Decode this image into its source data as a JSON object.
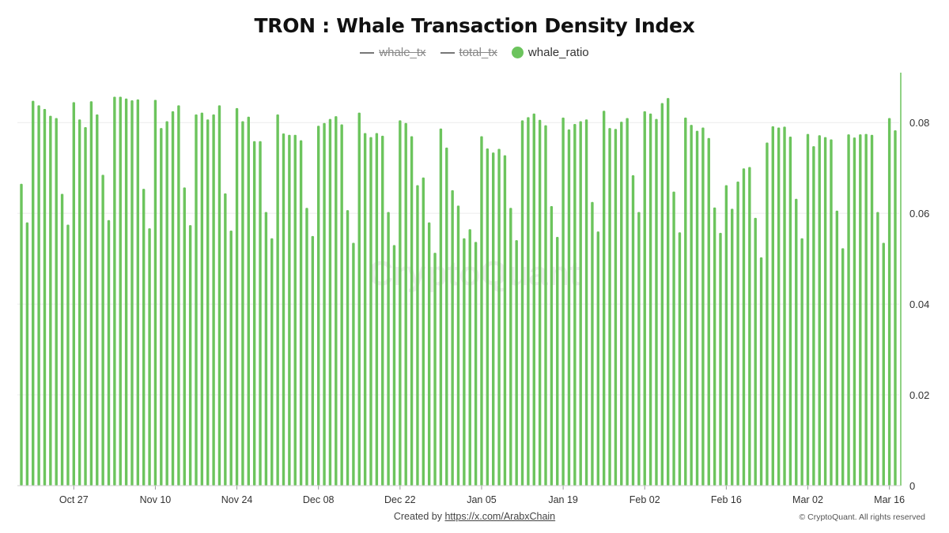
{
  "chart_data": {
    "type": "bar",
    "title": "TRON : Whale Transaction Density Index",
    "legend": [
      {
        "name": "whale_tx",
        "enabled": false,
        "color": "#777777"
      },
      {
        "name": "total_tx",
        "enabled": false,
        "color": "#777777"
      },
      {
        "name": "whale_ratio",
        "enabled": true,
        "color": "#6cc45d"
      }
    ],
    "legend_position": "top-center",
    "x_tick_labels": [
      "Oct 27",
      "Nov 10",
      "Nov 24",
      "Dec 08",
      "Dec 22",
      "Jan 05",
      "Jan 19",
      "Feb 02",
      "Feb 16",
      "Mar 02",
      "Mar 16"
    ],
    "y_tick_labels": [
      "0",
      "0.02",
      "0.04",
      "0.06",
      "0.08"
    ],
    "y_axis_position": "right",
    "ylim": [
      0,
      0.091
    ],
    "xlabel": "",
    "ylabel": "",
    "series": [
      {
        "name": "whale_ratio",
        "color": "#6cc45d",
        "start_date": "2024-10-18",
        "values": [
          0.0665,
          0.058,
          0.0848,
          0.0838,
          0.083,
          0.0815,
          0.081,
          0.0643,
          0.0575,
          0.0845,
          0.0807,
          0.079,
          0.0847,
          0.0818,
          0.0685,
          0.0585,
          0.0857,
          0.0857,
          0.0853,
          0.0849,
          0.0851,
          0.0654,
          0.0567,
          0.085,
          0.0788,
          0.0803,
          0.0825,
          0.0838,
          0.0657,
          0.0574,
          0.0818,
          0.0822,
          0.0807,
          0.0818,
          0.0838,
          0.0644,
          0.0562,
          0.0832,
          0.0803,
          0.0813,
          0.0759,
          0.0759,
          0.0603,
          0.0545,
          0.0818,
          0.0776,
          0.0773,
          0.0773,
          0.0761,
          0.0612,
          0.055,
          0.0793,
          0.0799,
          0.0808,
          0.0814,
          0.0796,
          0.0607,
          0.0535,
          0.0822,
          0.0777,
          0.0768,
          0.0777,
          0.0771,
          0.0603,
          0.053,
          0.0805,
          0.0799,
          0.077,
          0.0662,
          0.0679,
          0.058,
          0.0513,
          0.0787,
          0.0745,
          0.0651,
          0.0617,
          0.0545,
          0.0565,
          0.0537,
          0.077,
          0.0743,
          0.0734,
          0.0742,
          0.0728,
          0.0612,
          0.0541,
          0.0805,
          0.0812,
          0.082,
          0.0806,
          0.0794,
          0.0616,
          0.0548,
          0.0811,
          0.0785,
          0.0797,
          0.0803,
          0.0807,
          0.0625,
          0.056,
          0.0826,
          0.0788,
          0.0786,
          0.0802,
          0.081,
          0.0684,
          0.0603,
          0.0825,
          0.082,
          0.0808,
          0.0843,
          0.0854,
          0.0648,
          0.0558,
          0.0811,
          0.0795,
          0.0782,
          0.0789,
          0.0766,
          0.0613,
          0.0557,
          0.0662,
          0.061,
          0.067,
          0.0699,
          0.0702,
          0.059,
          0.0503,
          0.0756,
          0.0792,
          0.0789,
          0.0791,
          0.0769,
          0.0632,
          0.0545,
          0.0775,
          0.0748,
          0.0772,
          0.0768,
          0.0763,
          0.0606,
          0.0523,
          0.0774,
          0.0767,
          0.0774,
          0.0775,
          0.0773,
          0.0603,
          0.0535,
          0.081,
          0.0783
        ]
      }
    ]
  },
  "credit": {
    "prefix": "Created by ",
    "link_text": "https://x.com/ArabxChain"
  },
  "copyright": "© CryptoQuant. All rights reserved",
  "watermark": "CryptoQuant"
}
